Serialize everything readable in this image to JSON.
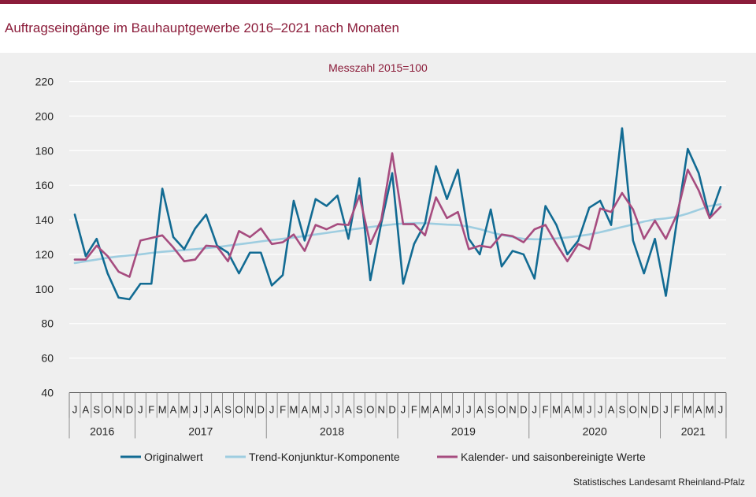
{
  "header": {
    "title": "Auftragseingänge im Bauhauptgewerbe 2016–2021 nach Monaten",
    "bar_color": "#8b1c3a",
    "title_color": "#8b1c3a"
  },
  "footer": {
    "source": "Statistisches Landesamt Rheinland-Pfalz"
  },
  "chart_data": {
    "type": "line",
    "title": "",
    "subtitle": "Messzahl 2015=100",
    "ylim": [
      40,
      220
    ],
    "yticks": [
      40,
      60,
      80,
      100,
      120,
      140,
      160,
      180,
      200,
      220
    ],
    "grid": "horizontal",
    "legend_position": "bottom",
    "months": [
      "J",
      "A",
      "S",
      "O",
      "N",
      "D",
      "J",
      "F",
      "M",
      "A",
      "M",
      "J",
      "J",
      "A",
      "S",
      "O",
      "N",
      "D",
      "J",
      "F",
      "M",
      "A",
      "M",
      "J",
      "J",
      "A",
      "S",
      "O",
      "N",
      "D",
      "J",
      "F",
      "M",
      "A",
      "M",
      "J",
      "J",
      "A",
      "S",
      "O",
      "N",
      "D",
      "J",
      "F",
      "M",
      "A",
      "M",
      "J",
      "J",
      "A",
      "S",
      "O",
      "N",
      "D",
      "J",
      "F",
      "M",
      "A",
      "M",
      "J"
    ],
    "years": [
      {
        "label": "2016",
        "count": 6
      },
      {
        "label": "2017",
        "count": 12
      },
      {
        "label": "2018",
        "count": 12
      },
      {
        "label": "2019",
        "count": 12
      },
      {
        "label": "2020",
        "count": 12
      },
      {
        "label": "2021",
        "count": 6
      }
    ],
    "series": [
      {
        "name": "Originalwert",
        "color": "#126b93",
        "values": [
          143,
          119,
          129,
          109,
          95,
          94,
          103,
          103,
          158,
          130,
          123,
          135,
          143,
          125,
          121,
          109,
          121,
          121,
          102,
          108,
          151,
          128,
          152,
          148,
          154,
          129,
          164,
          105,
          138,
          167,
          103,
          126,
          138,
          171,
          152,
          169,
          129,
          120,
          146,
          113,
          122,
          120,
          106,
          148,
          137,
          120,
          128,
          147,
          151,
          137,
          193,
          128,
          109,
          129,
          96,
          139,
          181,
          167,
          141,
          159
        ]
      },
      {
        "name": "Trend-Konjunktur-Komponente",
        "color": "#9ecde0",
        "values": [
          115,
          116,
          117,
          118,
          118.8,
          119.4,
          120,
          120.8,
          121.5,
          122,
          122.5,
          123,
          123.6,
          124.2,
          125,
          125.8,
          126.6,
          127.5,
          128.3,
          129,
          129.8,
          130.6,
          131.5,
          132.4,
          133.3,
          134.2,
          135,
          135.8,
          136.6,
          137.3,
          137.8,
          138,
          138,
          137.6,
          137.2,
          137,
          136,
          134.6,
          132.8,
          131.2,
          130,
          129,
          128.7,
          128.8,
          129.2,
          129.8,
          130.6,
          131.5,
          132.8,
          134.3,
          135.8,
          137.3,
          139,
          140.2,
          140.8,
          141.8,
          143.6,
          145.8,
          148,
          149
        ]
      },
      {
        "name": "Kalender- und saisonbereinigte Werte",
        "color": "#a64c7f",
        "values": [
          117,
          117,
          125,
          119,
          110,
          107,
          128,
          129.5,
          131,
          124,
          116,
          117,
          125,
          124.5,
          116,
          133.5,
          130,
          135,
          126,
          127,
          131.5,
          122,
          137,
          134.5,
          137.5,
          137,
          154,
          126,
          140,
          178.5,
          137.5,
          137.5,
          131,
          153,
          141,
          144.5,
          123,
          125,
          124,
          131.5,
          130.5,
          127,
          134.5,
          137,
          126,
          116,
          126,
          123,
          146.5,
          144.5,
          155.5,
          146,
          129,
          139.5,
          129,
          143,
          169,
          157,
          141,
          147.5
        ]
      }
    ]
  }
}
